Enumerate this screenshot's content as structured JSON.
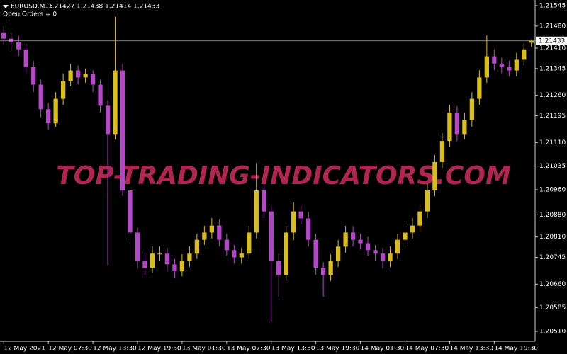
{
  "chart_data": {
    "type": "candlestick",
    "title": "EURUSD,M15",
    "subtitle": "Open Orders = 0",
    "watermark": "TOP-TRADING-INDICATORS.COM",
    "categories": [
      "12 May 2021",
      null,
      null,
      null,
      null,
      null,
      "12 May 07:30",
      null,
      null,
      null,
      null,
      null,
      "12 May 13:30",
      null,
      null,
      null,
      null,
      null,
      "12 May 19:30",
      null,
      null,
      null,
      null,
      null,
      "13 May 01:30",
      null,
      null,
      null,
      null,
      null,
      "13 May 07:30",
      null,
      null,
      null,
      null,
      null,
      "13 May 13:30",
      null,
      null,
      null,
      null,
      null,
      "13 May 19:30",
      null,
      null,
      null,
      null,
      null,
      "14 May 01:30",
      null,
      null,
      null,
      null,
      null,
      "14 May 07:30",
      null,
      null,
      null,
      null,
      null,
      "14 May 13:30",
      null,
      null,
      null,
      null,
      null,
      "14 May 19:30",
      null,
      null,
      null,
      null,
      null
    ],
    "open": [
      1.2146,
      1.2144,
      1.21429,
      1.21406,
      1.2135,
      1.21294,
      1.21216,
      1.21171,
      1.21249,
      1.21305,
      1.21339,
      1.21317,
      1.21328,
      1.21294,
      1.21227,
      1.21137,
      1.21339,
      1.20958,
      1.20824,
      1.20734,
      1.20712,
      1.20757,
      1.20757,
      1.20723,
      1.20701,
      1.20734,
      1.20757,
      1.20801,
      1.20824,
      1.20846,
      1.20801,
      1.20768,
      1.20745,
      1.20757,
      1.20824,
      1.20958,
      1.20891,
      1.20734,
      1.20689,
      1.20824,
      1.20891,
      1.20869,
      1.20801,
      1.20712,
      1.20689,
      1.20734,
      1.20779,
      1.20824,
      1.20801,
      1.2079,
      1.20768,
      1.20757,
      1.20734,
      1.20757,
      1.20801,
      1.20824,
      1.20846,
      1.20891,
      1.20958,
      1.21048,
      1.21115,
      1.21205,
      1.21137,
      1.21182,
      1.21249,
      1.21317,
      1.21384,
      1.21361,
      1.2135,
      1.21339,
      1.21373,
      1.21427
    ],
    "high": [
      1.2148,
      1.2146,
      1.2145,
      1.21425,
      1.2137,
      1.2131,
      1.21235,
      1.2127,
      1.2133,
      1.2136,
      1.21355,
      1.21345,
      1.2134,
      1.2131,
      1.21245,
      1.2151,
      1.2136,
      1.20975,
      1.2084,
      1.2076,
      1.2078,
      1.2078,
      1.20775,
      1.2074,
      1.20755,
      1.2078,
      1.2082,
      1.20845,
      1.2087,
      1.20865,
      1.2082,
      1.20785,
      1.20775,
      1.20845,
      1.21045,
      1.2098,
      1.2091,
      1.20755,
      1.20845,
      1.2092,
      1.2091,
      1.2089,
      1.2082,
      1.2073,
      1.20755,
      1.208,
      1.20845,
      1.20845,
      1.2082,
      1.2081,
      1.20785,
      1.20775,
      1.2078,
      1.2082,
      1.20845,
      1.2087,
      1.2091,
      1.2098,
      1.2107,
      1.2114,
      1.2123,
      1.21225,
      1.21205,
      1.2127,
      1.2134,
      1.2145,
      1.21405,
      1.2138,
      1.2137,
      1.21395,
      1.21425,
      1.21438
    ],
    "low": [
      1.2142,
      1.214,
      1.21385,
      1.2133,
      1.2127,
      1.2119,
      1.2115,
      1.2116,
      1.2123,
      1.2129,
      1.21295,
      1.213,
      1.2127,
      1.21205,
      1.2072,
      1.2112,
      1.2094,
      1.208,
      1.2071,
      1.2069,
      1.20695,
      1.20735,
      1.207,
      1.2068,
      1.20685,
      1.20715,
      1.2074,
      1.20785,
      1.20805,
      1.2078,
      1.2075,
      1.20725,
      1.20725,
      1.2074,
      1.20805,
      1.2087,
      1.2054,
      1.2062,
      1.2067,
      1.208,
      1.2085,
      1.2078,
      1.2069,
      1.2062,
      1.2067,
      1.20715,
      1.2076,
      1.2078,
      1.2077,
      1.2075,
      1.20735,
      1.2071,
      1.20715,
      1.2074,
      1.20785,
      1.20805,
      1.20825,
      1.2087,
      1.2094,
      1.2103,
      1.21095,
      1.21115,
      1.2112,
      1.2116,
      1.2123,
      1.213,
      1.2134,
      1.2133,
      1.2132,
      1.2132,
      1.21355,
      1.21414
    ],
    "close": [
      1.2144,
      1.21429,
      1.21406,
      1.2135,
      1.21294,
      1.21216,
      1.21171,
      1.21249,
      1.21305,
      1.21339,
      1.21317,
      1.21328,
      1.21294,
      1.21227,
      1.21137,
      1.21339,
      1.20958,
      1.20824,
      1.20734,
      1.20712,
      1.20757,
      1.20757,
      1.20723,
      1.20701,
      1.20734,
      1.20757,
      1.20801,
      1.20824,
      1.20846,
      1.20801,
      1.20768,
      1.20745,
      1.20757,
      1.20824,
      1.20958,
      1.20891,
      1.20734,
      1.20689,
      1.20824,
      1.20891,
      1.20869,
      1.20801,
      1.20712,
      1.20689,
      1.20734,
      1.20779,
      1.20824,
      1.20801,
      1.2079,
      1.20768,
      1.20757,
      1.20734,
      1.20757,
      1.20801,
      1.20824,
      1.20846,
      1.20891,
      1.20958,
      1.21048,
      1.21115,
      1.21205,
      1.21137,
      1.21182,
      1.21249,
      1.21317,
      1.21384,
      1.21361,
      1.2135,
      1.21339,
      1.21373,
      1.21406,
      1.21433
    ],
    "up_color": "#d9bd1c",
    "down_color": "#b548c8",
    "ylim": [
      1.20483,
      1.21563
    ],
    "yticks": [
      1.21545,
      {
        "value": 1.2148,
        "label": "1.21480"
      },
      {
        "value": 1.2141,
        "label": "1.21410"
      },
      1.21345,
      {
        "value": 1.2126,
        "label": "1.21260"
      },
      1.21195,
      {
        "value": 1.2111,
        "label": "1.21110"
      },
      1.21035,
      {
        "value": 1.2096,
        "label": "1.20960"
      },
      {
        "value": 1.2088,
        "label": "1.20880"
      },
      {
        "value": 1.2081,
        "label": "1.20810"
      },
      1.20745,
      {
        "value": 1.2066,
        "label": "1.20660"
      },
      1.20585,
      {
        "value": 1.2051,
        "label": "1.20510"
      }
    ]
  }
}
